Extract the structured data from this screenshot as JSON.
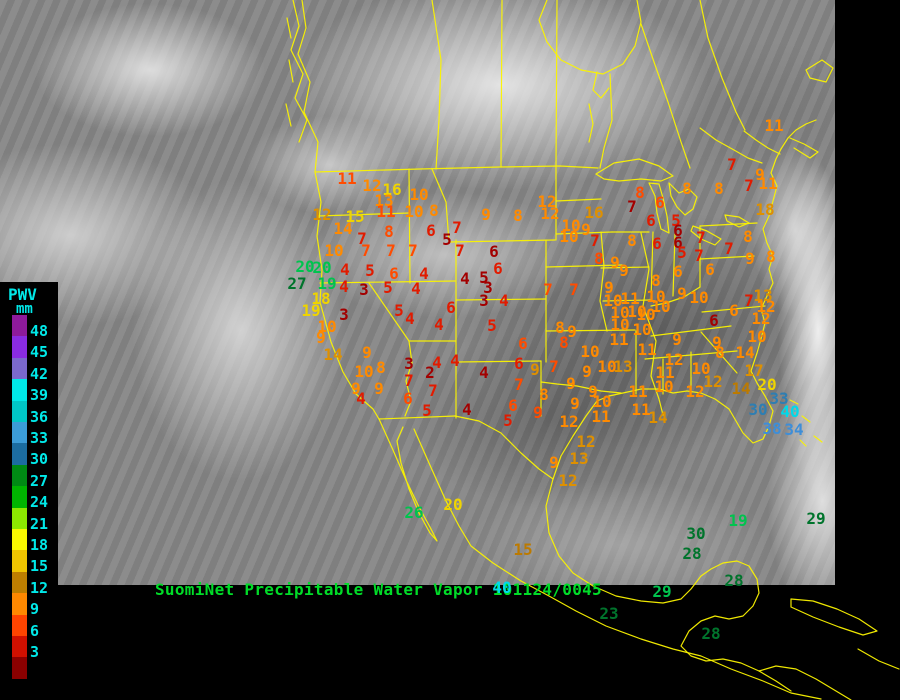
{
  "title": {
    "product": "SuomiNet Precipitable Water Vapor",
    "datetime": "101124/0045"
  },
  "legend": {
    "title": "PWV",
    "unit": "mm",
    "entries": [
      {
        "value": "48",
        "color": "#8E1A9B"
      },
      {
        "value": "45",
        "color": "#8A2BE2"
      },
      {
        "value": "42",
        "color": "#7B68CC"
      },
      {
        "value": "39",
        "color": "#00E8E8"
      },
      {
        "value": "36",
        "color": "#00C6C6"
      },
      {
        "value": "33",
        "color": "#3C9CD8"
      },
      {
        "value": "30",
        "color": "#1C6CA0"
      },
      {
        "value": "27",
        "color": "#008A14"
      },
      {
        "value": "24",
        "color": "#00B400"
      },
      {
        "value": "21",
        "color": "#8CE800"
      },
      {
        "value": "18",
        "color": "#F8F800"
      },
      {
        "value": "15",
        "color": "#F0C400"
      },
      {
        "value": "12",
        "color": "#BE7E00"
      },
      {
        "value": "9",
        "color": "#FF8800"
      },
      {
        "value": "6",
        "color": "#FF4400"
      },
      {
        "value": "3",
        "color": "#D01000"
      }
    ],
    "below_scale_color": "#8B0000"
  },
  "colors": {
    "darkred": "#A30000",
    "red": "#E11B00",
    "orangered": "#FF4C00",
    "orange": "#FF8A00",
    "gold": "#DE9000",
    "ochre": "#BC7A00",
    "yellow": "#EFD400",
    "green": "#00C34E",
    "darkgreen": "#00742C",
    "steelblue": "#2E7EB2",
    "blue": "#3E8ED8",
    "cyan": "#00D9E9",
    "map_outline": "#FBF300",
    "title": "#00DC28",
    "legend_text": "#00E9E9"
  },
  "stations": [
    [
      "11",
      347,
      179,
      "orangered"
    ],
    [
      "12",
      372,
      186,
      "orange"
    ],
    [
      "16",
      392,
      190,
      "yellow"
    ],
    [
      "13",
      384,
      201,
      "orange"
    ],
    [
      "10",
      419,
      195,
      "orange"
    ],
    [
      "11",
      386,
      212,
      "orangered"
    ],
    [
      "10",
      414,
      212,
      "orange"
    ],
    [
      "8",
      434,
      211,
      "orange"
    ],
    [
      "12",
      322,
      215,
      "gold"
    ],
    [
      "15",
      355,
      217,
      "yellow"
    ],
    [
      "14",
      343,
      229,
      "orange"
    ],
    [
      "7",
      362,
      239,
      "red"
    ],
    [
      "8",
      389,
      232,
      "orangered"
    ],
    [
      "6",
      431,
      231,
      "red"
    ],
    [
      "7",
      457,
      228,
      "red"
    ],
    [
      "5",
      447,
      240,
      "darkred"
    ],
    [
      "10",
      334,
      251,
      "orange"
    ],
    [
      "7",
      366,
      251,
      "orangered"
    ],
    [
      "7",
      391,
      251,
      "orangered"
    ],
    [
      "7",
      413,
      251,
      "orangered"
    ],
    [
      "7",
      460,
      251,
      "red"
    ],
    [
      "20",
      305,
      267,
      "green"
    ],
    [
      "20",
      322,
      268,
      "green"
    ],
    [
      "4",
      345,
      270,
      "red"
    ],
    [
      "5",
      370,
      271,
      "red"
    ],
    [
      "6",
      394,
      274,
      "orangered"
    ],
    [
      "4",
      424,
      274,
      "red"
    ],
    [
      "27",
      297,
      284,
      "darkgreen"
    ],
    [
      "19",
      327,
      284,
      "green"
    ],
    [
      "4",
      344,
      287,
      "red"
    ],
    [
      "3",
      364,
      290,
      "darkred"
    ],
    [
      "5",
      388,
      288,
      "red"
    ],
    [
      "4",
      416,
      289,
      "red"
    ],
    [
      "4",
      465,
      279,
      "darkred"
    ],
    [
      "18",
      321,
      299,
      "yellow"
    ],
    [
      "19",
      311,
      311,
      "yellow"
    ],
    [
      "3",
      344,
      315,
      "darkred"
    ],
    [
      "10",
      327,
      327,
      "orange"
    ],
    [
      "9",
      321,
      338,
      "orange"
    ],
    [
      "5",
      399,
      311,
      "red"
    ],
    [
      "4",
      410,
      319,
      "red"
    ],
    [
      "6",
      451,
      308,
      "red"
    ],
    [
      "4",
      439,
      325,
      "red"
    ],
    [
      "14",
      333,
      355,
      "gold"
    ],
    [
      "9",
      367,
      353,
      "orange"
    ],
    [
      "8",
      381,
      368,
      "orange"
    ],
    [
      "10",
      364,
      372,
      "orange"
    ],
    [
      "3",
      409,
      364,
      "darkred"
    ],
    [
      "2",
      430,
      373,
      "darkred"
    ],
    [
      "7",
      409,
      381,
      "red"
    ],
    [
      "4",
      437,
      363,
      "red"
    ],
    [
      "4",
      455,
      361,
      "red"
    ],
    [
      "9",
      356,
      389,
      "orange"
    ],
    [
      "9",
      379,
      389,
      "orange"
    ],
    [
      "4",
      361,
      399,
      "red"
    ],
    [
      "6",
      408,
      399,
      "orangered"
    ],
    [
      "7",
      433,
      391,
      "red"
    ],
    [
      "5",
      427,
      411,
      "red"
    ],
    [
      "4",
      467,
      410,
      "darkred"
    ],
    [
      "9",
      486,
      215,
      "orange"
    ],
    [
      "8",
      518,
      216,
      "orange"
    ],
    [
      "12",
      547,
      202,
      "orange"
    ],
    [
      "12",
      550,
      214,
      "orange"
    ],
    [
      "16",
      594,
      213,
      "gold"
    ],
    [
      "10",
      571,
      226,
      "orange"
    ],
    [
      "9",
      586,
      230,
      "orange"
    ],
    [
      "10",
      569,
      237,
      "orange"
    ],
    [
      "7",
      595,
      241,
      "red"
    ],
    [
      "6",
      494,
      252,
      "darkred"
    ],
    [
      "6",
      498,
      269,
      "red"
    ],
    [
      "5",
      484,
      278,
      "darkred"
    ],
    [
      "3",
      488,
      288,
      "darkred"
    ],
    [
      "3",
      484,
      301,
      "darkred"
    ],
    [
      "4",
      504,
      301,
      "red"
    ],
    [
      "5",
      492,
      326,
      "red"
    ],
    [
      "8",
      560,
      328,
      "orange"
    ],
    [
      "6",
      523,
      344,
      "orangered"
    ],
    [
      "8",
      564,
      343,
      "orangered"
    ],
    [
      "6",
      519,
      364,
      "red"
    ],
    [
      "9",
      535,
      370,
      "gold"
    ],
    [
      "7",
      554,
      367,
      "orangered"
    ],
    [
      "4",
      484,
      373,
      "darkred"
    ],
    [
      "7",
      519,
      385,
      "orangered"
    ],
    [
      "8",
      544,
      395,
      "orange"
    ],
    [
      "9",
      571,
      384,
      "orange"
    ],
    [
      "9",
      593,
      392,
      "orange"
    ],
    [
      "6",
      513,
      406,
      "orangered"
    ],
    [
      "9",
      538,
      413,
      "orangered"
    ],
    [
      "9",
      575,
      404,
      "orange"
    ],
    [
      "5",
      508,
      421,
      "red"
    ],
    [
      "12",
      569,
      422,
      "orange"
    ],
    [
      "12",
      586,
      442,
      "gold"
    ],
    [
      "9",
      554,
      463,
      "orange"
    ],
    [
      "13",
      579,
      459,
      "gold"
    ],
    [
      "12",
      568,
      481,
      "gold"
    ],
    [
      "20",
      453,
      505,
      "yellow"
    ],
    [
      "26",
      414,
      513,
      "green"
    ],
    [
      "15",
      523,
      550,
      "ochre"
    ],
    [
      "7",
      548,
      290,
      "orangered"
    ],
    [
      "7",
      574,
      290,
      "orangered"
    ],
    [
      "8",
      640,
      193,
      "orangered"
    ],
    [
      "7",
      632,
      207,
      "darkred"
    ],
    [
      "6",
      660,
      203,
      "orangered"
    ],
    [
      "8",
      687,
      189,
      "orange"
    ],
    [
      "8",
      719,
      189,
      "orange"
    ],
    [
      "7",
      749,
      186,
      "red"
    ],
    [
      "11",
      768,
      184,
      "orange"
    ],
    [
      "9",
      760,
      175,
      "orange"
    ],
    [
      "7",
      732,
      165,
      "red"
    ],
    [
      "11",
      774,
      126,
      "orange"
    ],
    [
      "6",
      651,
      221,
      "red"
    ],
    [
      "5",
      676,
      221,
      "red"
    ],
    [
      "6",
      678,
      231,
      "darkred"
    ],
    [
      "6",
      678,
      243,
      "darkred"
    ],
    [
      "5",
      682,
      253,
      "red"
    ],
    [
      "8",
      632,
      241,
      "orange"
    ],
    [
      "6",
      657,
      244,
      "red"
    ],
    [
      "7",
      701,
      238,
      "red"
    ],
    [
      "7",
      699,
      256,
      "red"
    ],
    [
      "7",
      729,
      249,
      "red"
    ],
    [
      "8",
      748,
      237,
      "orange"
    ],
    [
      "9",
      750,
      259,
      "orange"
    ],
    [
      "8",
      771,
      257,
      "orange"
    ],
    [
      "18",
      765,
      210,
      "gold"
    ],
    [
      "6",
      710,
      270,
      "orange"
    ],
    [
      "6",
      678,
      272,
      "orange"
    ],
    [
      "8",
      656,
      281,
      "orange"
    ],
    [
      "9",
      624,
      271,
      "orange"
    ],
    [
      "8",
      599,
      259,
      "orangered"
    ],
    [
      "9",
      615,
      263,
      "orange"
    ],
    [
      "9",
      609,
      288,
      "orange"
    ],
    [
      "10",
      613,
      301,
      "orange"
    ],
    [
      "11",
      630,
      299,
      "orange"
    ],
    [
      "10",
      656,
      297,
      "orange"
    ],
    [
      "9",
      682,
      294,
      "orange"
    ],
    [
      "10",
      620,
      313,
      "orange"
    ],
    [
      "10",
      637,
      312,
      "orange"
    ],
    [
      "10",
      646,
      315,
      "orange"
    ],
    [
      "10",
      661,
      307,
      "orange"
    ],
    [
      "9",
      572,
      332,
      "orange"
    ],
    [
      "10",
      620,
      325,
      "orange"
    ],
    [
      "10",
      642,
      330,
      "orange"
    ],
    [
      "11",
      619,
      340,
      "orange"
    ],
    [
      "11",
      647,
      350,
      "orange"
    ],
    [
      "9",
      677,
      340,
      "orange"
    ],
    [
      "6",
      714,
      321,
      "darkred"
    ],
    [
      "9",
      717,
      343,
      "orange"
    ],
    [
      "10",
      590,
      352,
      "orange"
    ],
    [
      "12",
      674,
      360,
      "orange"
    ],
    [
      "9",
      587,
      372,
      "orange"
    ],
    [
      "10",
      607,
      367,
      "orange"
    ],
    [
      "13",
      623,
      367,
      "gold"
    ],
    [
      "11",
      665,
      373,
      "orange"
    ],
    [
      "10",
      701,
      369,
      "orange"
    ],
    [
      "12",
      713,
      382,
      "gold"
    ],
    [
      "11",
      638,
      392,
      "orange"
    ],
    [
      "10",
      664,
      387,
      "orange"
    ],
    [
      "12",
      695,
      392,
      "orange"
    ],
    [
      "10",
      602,
      402,
      "orange"
    ],
    [
      "11",
      601,
      417,
      "orange"
    ],
    [
      "11",
      641,
      410,
      "orange"
    ],
    [
      "14",
      658,
      418,
      "gold"
    ],
    [
      "10",
      699,
      298,
      "orange"
    ],
    [
      "7",
      749,
      301,
      "red"
    ],
    [
      "13",
      763,
      296,
      "gold"
    ],
    [
      "12",
      766,
      307,
      "orange"
    ],
    [
      "12",
      761,
      319,
      "orange"
    ],
    [
      "6",
      734,
      311,
      "orange"
    ],
    [
      "10",
      757,
      337,
      "orange"
    ],
    [
      "8",
      720,
      353,
      "orange"
    ],
    [
      "14",
      745,
      353,
      "orange"
    ],
    [
      "17",
      754,
      371,
      "gold"
    ],
    [
      "14",
      741,
      389,
      "ochre"
    ],
    [
      "20",
      767,
      385,
      "yellow"
    ],
    [
      "33",
      779,
      399,
      "steelblue"
    ],
    [
      "30",
      758,
      410,
      "steelblue"
    ],
    [
      "40",
      790,
      412,
      "cyan"
    ],
    [
      "38",
      772,
      429,
      "blue"
    ],
    [
      "34",
      794,
      430,
      "blue"
    ],
    [
      "19",
      738,
      521,
      "green"
    ],
    [
      "30",
      696,
      534,
      "darkgreen"
    ],
    [
      "28",
      692,
      554,
      "darkgreen"
    ],
    [
      "28",
      734,
      581,
      "darkgreen"
    ],
    [
      "29",
      662,
      592,
      "green"
    ],
    [
      "23",
      609,
      614,
      "darkgreen"
    ],
    [
      "28",
      711,
      634,
      "darkgreen"
    ],
    [
      "29",
      816,
      519,
      "darkgreen"
    ],
    [
      "40",
      502,
      588,
      "cyan"
    ]
  ]
}
